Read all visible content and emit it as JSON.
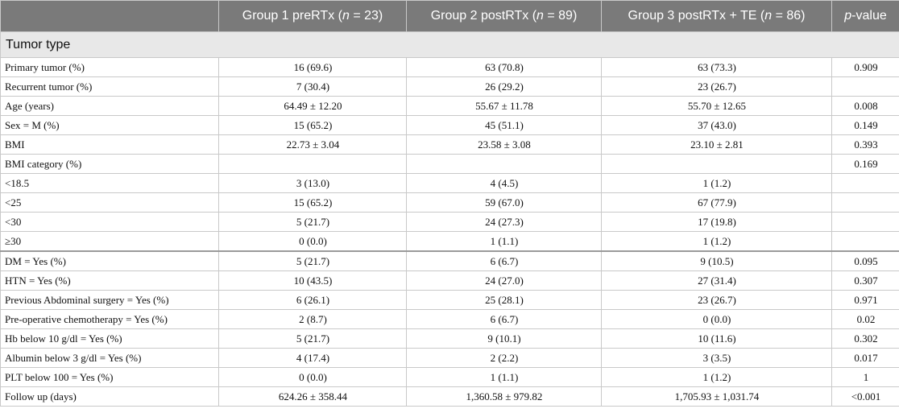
{
  "header": {
    "col0": "",
    "group1_prefix": "Group 1 preRTx (",
    "group1_n": "n",
    "group1_suffix": " = 23)",
    "group2_prefix": "Group 2 postRTx (",
    "group2_n": "n",
    "group2_suffix": " = 89)",
    "group3_prefix": "Group 3 postRTx + TE (",
    "group3_n": "n",
    "group3_suffix": " = 86)",
    "pvalue_italic": "p",
    "pvalue_suffix": "-value"
  },
  "section_title": "Tumor type",
  "rows": [
    {
      "label": "Primary tumor (%)",
      "g1": "16 (69.6)",
      "g2": "63 (70.8)",
      "g3": "63 (73.3)",
      "p": "0.909"
    },
    {
      "label": "Recurrent tumor (%)",
      "g1": "7 (30.4)",
      "g2": "26 (29.2)",
      "g3": "23 (26.7)",
      "p": ""
    },
    {
      "label": "Age (years)",
      "g1": "64.49 ± 12.20",
      "g2": "55.67 ± 11.78",
      "g3": "55.70 ± 12.65",
      "p": "0.008"
    },
    {
      "label": "Sex = M (%)",
      "g1": "15 (65.2)",
      "g2": "45 (51.1)",
      "g3": "37 (43.0)",
      "p": "0.149"
    },
    {
      "label": "BMI",
      "g1": "22.73 ± 3.04",
      "g2": "23.58 ± 3.08",
      "g3": "23.10 ± 2.81",
      "p": "0.393"
    },
    {
      "label": "BMI category (%)",
      "g1": "",
      "g2": "",
      "g3": "",
      "p": "0.169"
    },
    {
      "label": "<18.5",
      "g1": "3 (13.0)",
      "g2": "4 (4.5)",
      "g3": "1 (1.2)",
      "p": ""
    },
    {
      "label": "<25",
      "g1": "15 (65.2)",
      "g2": "59 (67.0)",
      "g3": "67 (77.9)",
      "p": ""
    },
    {
      "label": "<30",
      "g1": "5 (21.7)",
      "g2": "24 (27.3)",
      "g3": "17 (19.8)",
      "p": ""
    },
    {
      "label": "≥30",
      "g1": "0 (0.0)",
      "g2": "1 (1.1)",
      "g3": "1 (1.2)",
      "p": ""
    },
    {
      "label": "DM = Yes (%)",
      "g1": "5 (21.7)",
      "g2": "6 (6.7)",
      "g3": "9 (10.5)",
      "p": "0.095"
    },
    {
      "label": "HTN = Yes (%)",
      "g1": "10 (43.5)",
      "g2": "24 (27.0)",
      "g3": "27 (31.4)",
      "p": "0.307"
    },
    {
      "label": "Previous Abdominal surgery = Yes (%)",
      "g1": "6 (26.1)",
      "g2": "25 (28.1)",
      "g3": "23 (26.7)",
      "p": "0.971"
    },
    {
      "label": "Pre-operative chemotherapy = Yes (%)",
      "g1": "2 (8.7)",
      "g2": "6 (6.7)",
      "g3": "0 (0.0)",
      "p": "0.02"
    },
    {
      "label": "Hb below 10 g/dl = Yes (%)",
      "g1": "5 (21.7)",
      "g2": "9 (10.1)",
      "g3": "10 (11.6)",
      "p": "0.302"
    },
    {
      "label": "Albumin below 3 g/dl = Yes (%)",
      "g1": "4 (17.4)",
      "g2": "2 (2.2)",
      "g3": "3 (3.5)",
      "p": "0.017"
    },
    {
      "label": "PLT below 100 = Yes (%)",
      "g1": "0 (0.0)",
      "g2": "1 (1.1)",
      "g3": "1 (1.2)",
      "p": "1"
    },
    {
      "label": "Follow up (days)",
      "g1": "624.26 ± 358.44",
      "g2": "1,360.58 ± 979.82",
      "g3": "1,705.93 ± 1,031.74",
      "p": "<0.001"
    }
  ]
}
